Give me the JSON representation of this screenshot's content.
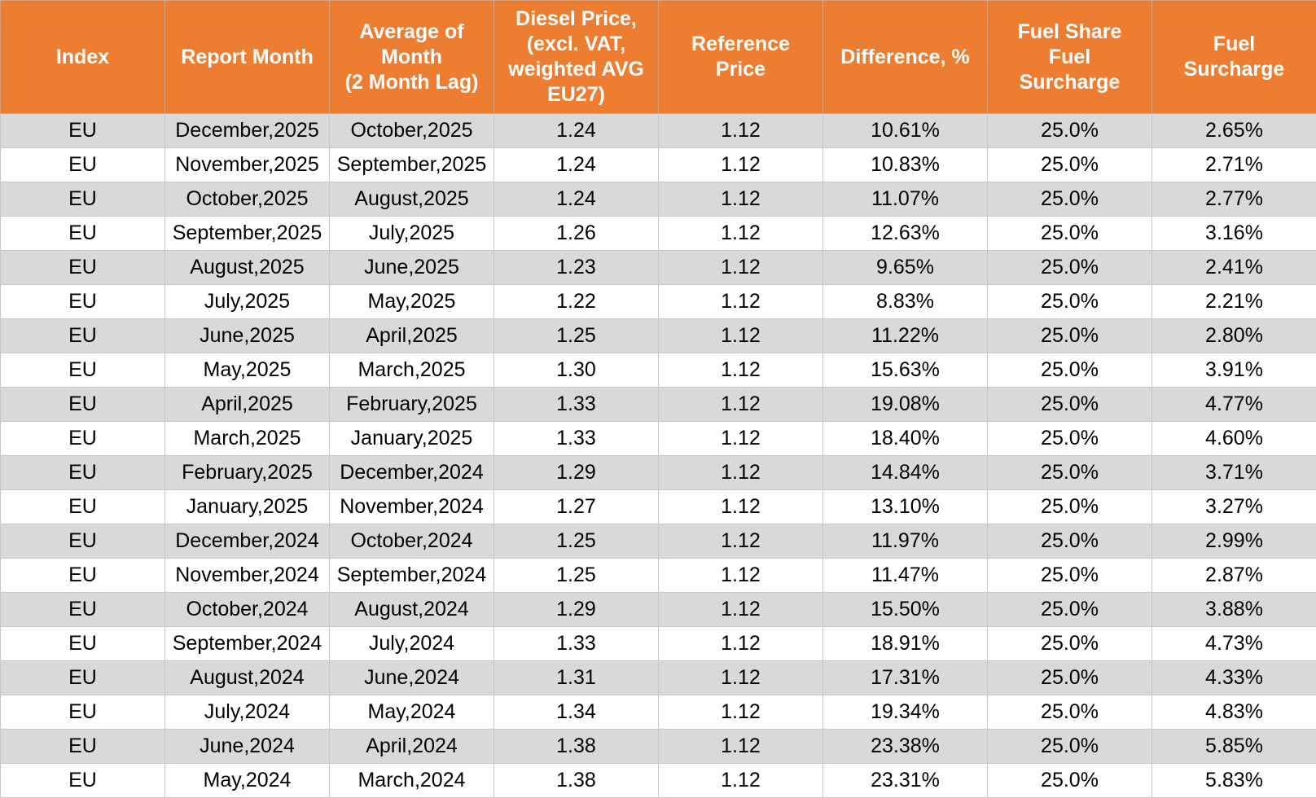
{
  "table": {
    "header": [
      "Index",
      "Report Month",
      "Average of\nMonth\n(2 Month Lag)",
      "Diesel Price,\n(excl. VAT,\nweighted AVG\nEU27)",
      "Reference\nPrice",
      "Difference, %",
      "Fuel Share\nFuel\nSurcharge",
      "Fuel\nSurcharge"
    ],
    "rows": [
      [
        "EU",
        "December,2025",
        "October,2025",
        "1.24",
        "1.12",
        "10.61%",
        "25.0%",
        "2.65%"
      ],
      [
        "EU",
        "November,2025",
        "September,2025",
        "1.24",
        "1.12",
        "10.83%",
        "25.0%",
        "2.71%"
      ],
      [
        "EU",
        "October,2025",
        "August,2025",
        "1.24",
        "1.12",
        "11.07%",
        "25.0%",
        "2.77%"
      ],
      [
        "EU",
        "September,2025",
        "July,2025",
        "1.26",
        "1.12",
        "12.63%",
        "25.0%",
        "3.16%"
      ],
      [
        "EU",
        "August,2025",
        "June,2025",
        "1.23",
        "1.12",
        "9.65%",
        "25.0%",
        "2.41%"
      ],
      [
        "EU",
        "July,2025",
        "May,2025",
        "1.22",
        "1.12",
        "8.83%",
        "25.0%",
        "2.21%"
      ],
      [
        "EU",
        "June,2025",
        "April,2025",
        "1.25",
        "1.12",
        "11.22%",
        "25.0%",
        "2.80%"
      ],
      [
        "EU",
        "May,2025",
        "March,2025",
        "1.30",
        "1.12",
        "15.63%",
        "25.0%",
        "3.91%"
      ],
      [
        "EU",
        "April,2025",
        "February,2025",
        "1.33",
        "1.12",
        "19.08%",
        "25.0%",
        "4.77%"
      ],
      [
        "EU",
        "March,2025",
        "January,2025",
        "1.33",
        "1.12",
        "18.40%",
        "25.0%",
        "4.60%"
      ],
      [
        "EU",
        "February,2025",
        "December,2024",
        "1.29",
        "1.12",
        "14.84%",
        "25.0%",
        "3.71%"
      ],
      [
        "EU",
        "January,2025",
        "November,2024",
        "1.27",
        "1.12",
        "13.10%",
        "25.0%",
        "3.27%"
      ],
      [
        "EU",
        "December,2024",
        "October,2024",
        "1.25",
        "1.12",
        "11.97%",
        "25.0%",
        "2.99%"
      ],
      [
        "EU",
        "November,2024",
        "September,2024",
        "1.25",
        "1.12",
        "11.47%",
        "25.0%",
        "2.87%"
      ],
      [
        "EU",
        "October,2024",
        "August,2024",
        "1.29",
        "1.12",
        "15.50%",
        "25.0%",
        "3.88%"
      ],
      [
        "EU",
        "September,2024",
        "July,2024",
        "1.33",
        "1.12",
        "18.91%",
        "25.0%",
        "4.73%"
      ],
      [
        "EU",
        "August,2024",
        "June,2024",
        "1.31",
        "1.12",
        "17.31%",
        "25.0%",
        "4.33%"
      ],
      [
        "EU",
        "July,2024",
        "May,2024",
        "1.34",
        "1.12",
        "19.34%",
        "25.0%",
        "4.83%"
      ],
      [
        "EU",
        "June,2024",
        "April,2024",
        "1.38",
        "1.12",
        "23.38%",
        "25.0%",
        "5.85%"
      ],
      [
        "EU",
        "May,2024",
        "March,2024",
        "1.38",
        "1.12",
        "23.31%",
        "25.0%",
        "5.83%"
      ]
    ]
  }
}
